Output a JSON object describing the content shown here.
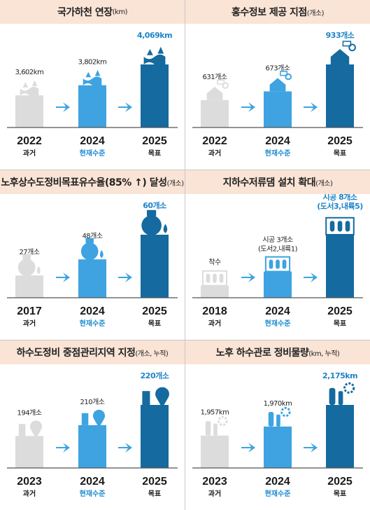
{
  "colors": {
    "past": "#dcdcdc",
    "current": "#3ea3e0",
    "target": "#156a9f",
    "header_bg": "#fae4d6",
    "arrow": "#3ea3e0"
  },
  "panels": [
    {
      "id": "river",
      "title": "국가하천 연장",
      "unit": "(km)",
      "icon": "river-icon",
      "ymax": 4069,
      "chart_data": {
        "type": "bar",
        "categories": [
          "2022",
          "2024",
          "2025"
        ],
        "labels": [
          "과거",
          "현재수준",
          "목표"
        ],
        "values": [
          3602,
          3802,
          4069
        ],
        "value_labels": [
          "3,602km",
          "3,802km",
          "4,069km"
        ]
      }
    },
    {
      "id": "flood",
      "title": "홍수정보 제공 지점",
      "unit": "(개소)",
      "icon": "flood-house-icon",
      "ymax": 933,
      "chart_data": {
        "type": "bar",
        "categories": [
          "2022",
          "2024",
          "2025"
        ],
        "labels": [
          "과거",
          "현재수준",
          "목표"
        ],
        "values": [
          631,
          673,
          933
        ],
        "value_labels": [
          "631개소",
          "673개소",
          "933개소"
        ]
      }
    },
    {
      "id": "pipe",
      "title": "노후상수도정비목표유수율(85% ↑) 달성",
      "unit": "(개소)",
      "icon": "faucet-icon",
      "ymax": 60,
      "chart_data": {
        "type": "bar",
        "categories": [
          "2017",
          "2024",
          "2025"
        ],
        "labels": [
          "과거",
          "현재수준",
          "목표"
        ],
        "values": [
          27,
          48,
          60
        ],
        "value_labels": [
          "27개소",
          "48개소",
          "60개소"
        ]
      }
    },
    {
      "id": "dam",
      "title": "지하수저류댐 설치 확대",
      "unit": "(개소)",
      "icon": "dam-icon",
      "ymax": 8,
      "chart_data": {
        "type": "bar",
        "categories": [
          "2018",
          "2024",
          "2025"
        ],
        "labels": [
          "과거",
          "현재수준",
          "목표"
        ],
        "values": [
          0,
          3,
          8
        ],
        "value_labels": [
          "착수",
          "시공 3개소\n(도서2,내륙1)",
          "시공 8개소\n(도서3,내륙5)"
        ]
      }
    },
    {
      "id": "sewer_zone",
      "title": "하수도정비 중점관리지역 지정",
      "unit": "(개소, 누적)",
      "icon": "location-pin-icon",
      "ymax": 220,
      "chart_data": {
        "type": "bar",
        "categories": [
          "2023",
          "2024",
          "2025"
        ],
        "labels": [
          "과거",
          "현재수준",
          "목표"
        ],
        "values": [
          194,
          210,
          220
        ],
        "value_labels": [
          "194개소",
          "210개소",
          "220개소"
        ]
      }
    },
    {
      "id": "sewer_pipe",
      "title": "노후 하수관로 정비물량",
      "unit": "(km, 누적)",
      "icon": "pipe-gear-icon",
      "ymax": 2175,
      "chart_data": {
        "type": "bar",
        "categories": [
          "2023",
          "2024",
          "2025"
        ],
        "labels": [
          "과거",
          "현재수준",
          "목표"
        ],
        "values": [
          1957,
          1970,
          2175
        ],
        "value_labels": [
          "1,957km",
          "1,970km",
          "2,175km"
        ]
      }
    }
  ]
}
